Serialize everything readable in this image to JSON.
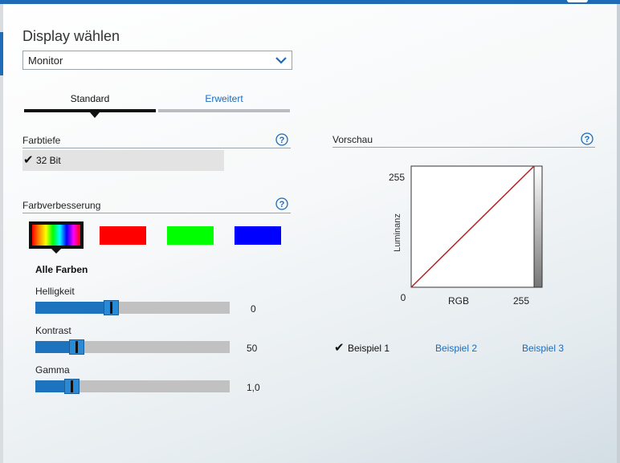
{
  "window": {
    "accent_color": "#1e6bb8"
  },
  "display_select": {
    "title": "Display wählen",
    "selected": "Monitor",
    "chevron_icon": "chevron-down-icon"
  },
  "tabs": [
    {
      "label": "Standard",
      "active": true
    },
    {
      "label": "Erweitert",
      "active": false
    }
  ],
  "farbtiefe": {
    "label": "Farbtiefe",
    "help_icon": "help-icon",
    "selected": "32 Bit",
    "check_glyph": "✔"
  },
  "farbverbesserung": {
    "label": "Farbverbesserung",
    "help_icon": "help-icon",
    "swatches": [
      {
        "id": "all",
        "colors": "rainbow",
        "selected": true
      },
      {
        "id": "red",
        "color": "#ff0000",
        "selected": false
      },
      {
        "id": "green",
        "color": "#00ff00",
        "selected": false
      },
      {
        "id": "blue",
        "color": "#0000ff",
        "selected": false
      }
    ],
    "channel_label": "Alle Farben",
    "sliders": [
      {
        "label": "Helligkeit",
        "value": "0",
        "fraction": 0.38
      },
      {
        "label": "Kontrast",
        "value": "50",
        "fraction": 0.19
      },
      {
        "label": "Gamma",
        "value": "1,0",
        "fraction": 0.16
      }
    ]
  },
  "vorschau": {
    "label": "Vorschau",
    "help_icon": "help-icon",
    "chart_data": {
      "type": "line",
      "xlabel": "RGB",
      "ylabel": "Luminanz",
      "xlim": [
        0,
        255
      ],
      "ylim": [
        0,
        255
      ],
      "x_ticks": [
        "0",
        "255"
      ],
      "y_ticks": [
        "255"
      ],
      "series": [
        {
          "x": [
            0,
            255
          ],
          "y": [
            0,
            255
          ],
          "color": "#b22222"
        }
      ],
      "grayscale_bar": true
    },
    "examples": [
      {
        "label": "Beispiel 1",
        "selected": true
      },
      {
        "label": "Beispiel 2",
        "selected": false
      },
      {
        "label": "Beispiel 3",
        "selected": false
      }
    ]
  }
}
